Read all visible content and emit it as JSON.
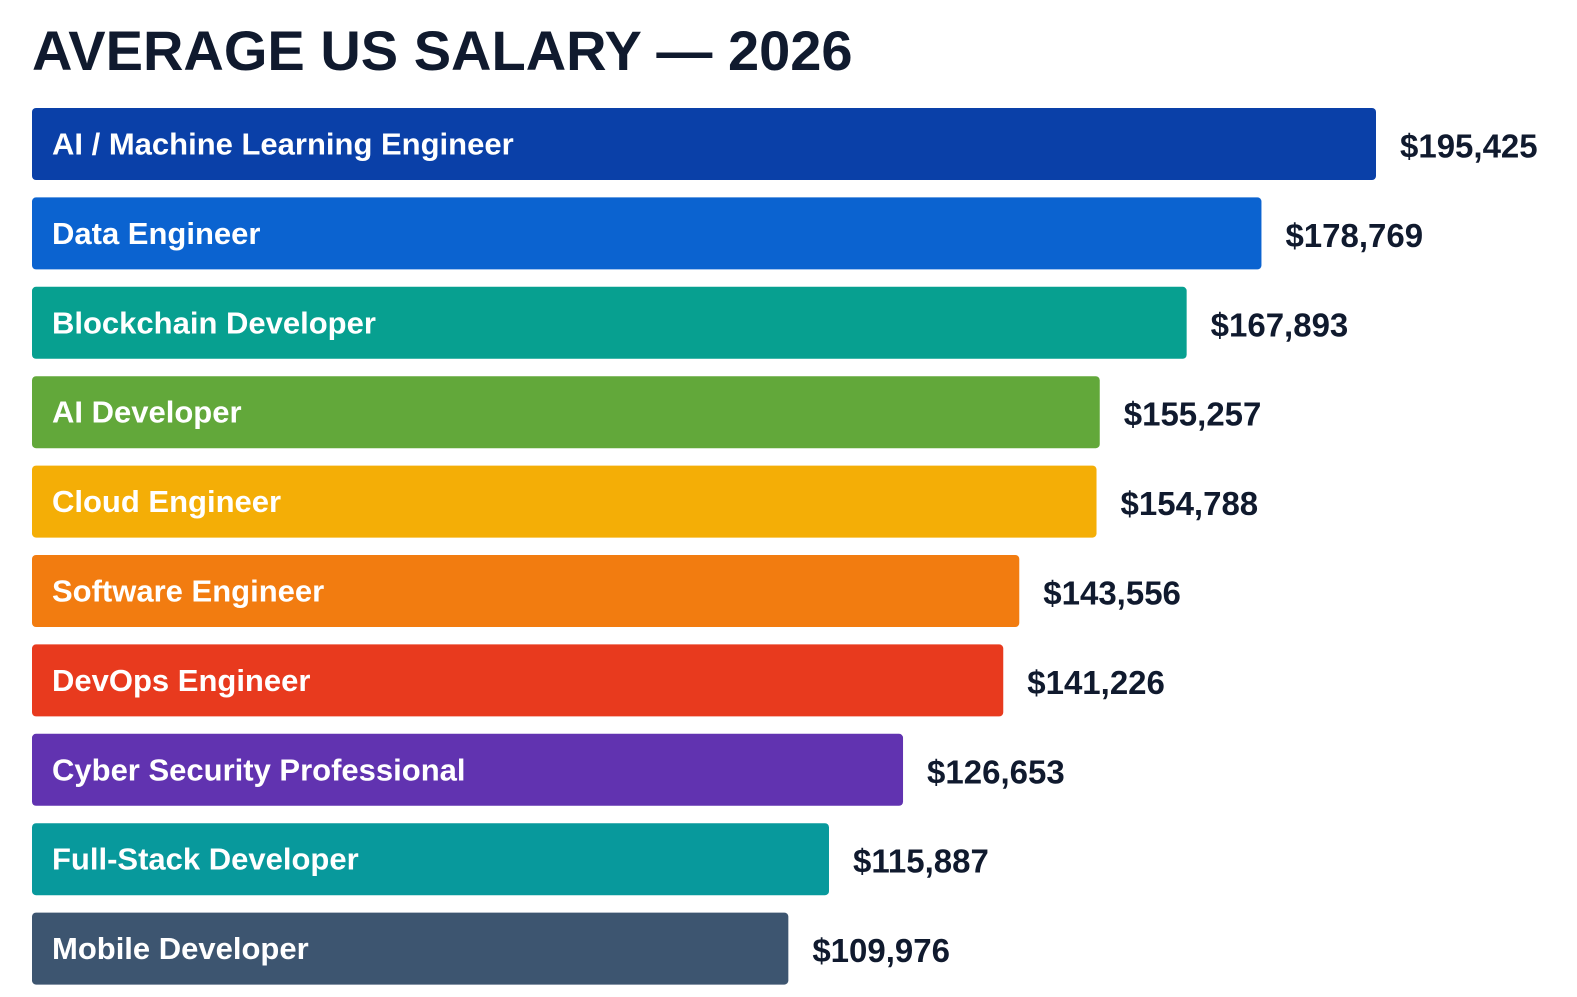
{
  "chart_data": {
    "type": "bar",
    "orientation": "horizontal",
    "title": "AVERAGE US SALARY — 2026",
    "xlabel": "",
    "ylabel": "",
    "grid": false,
    "categories": [
      "AI / Machine Learning Engineer",
      "Data Engineer",
      "Blockchain Developer",
      "AI Developer",
      "Cloud Engineer",
      "Software Engineer",
      "DevOps Engineer",
      "Cyber Security Professional",
      "Full-Stack Developer",
      "Mobile Developer"
    ],
    "values": [
      195425,
      178769,
      167893,
      155257,
      154788,
      143556,
      141226,
      126653,
      115887,
      109976
    ],
    "value_labels": [
      "$195,425",
      "$178,769",
      "$167,893",
      "$155,257",
      "$154,788",
      "$143,556",
      "$141,226",
      "$126,653",
      "$115,887",
      "$109,976"
    ],
    "colors": [
      "#0a40a8",
      "#0b63d0",
      "#07a090",
      "#62a83a",
      "#f4ae06",
      "#f27c10",
      "#e83a1e",
      "#6133b0",
      "#08999c",
      "#3d5570"
    ]
  }
}
